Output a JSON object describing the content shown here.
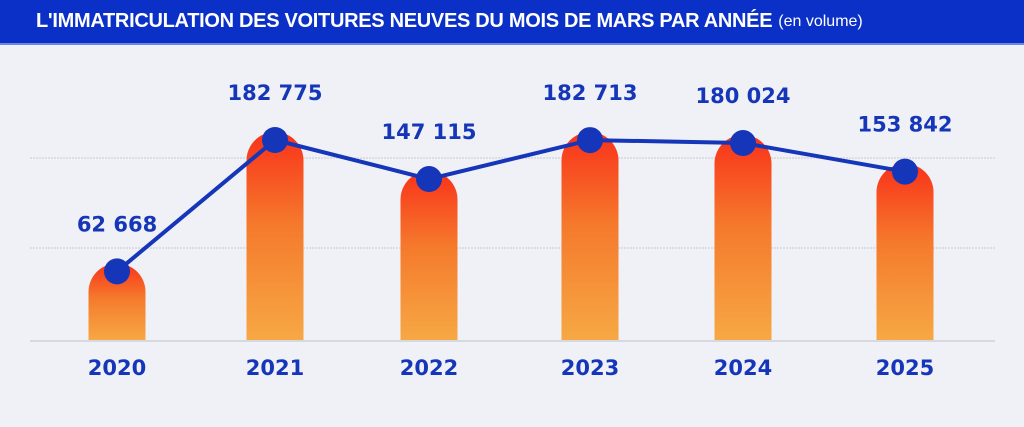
{
  "chart_data": {
    "type": "bar",
    "title": "L'IMMATRICULATION DES VOITURES NEUVES DU MOIS DE MARS PAR ANNÉE",
    "subtitle": "(en volume)",
    "xlabel": "",
    "ylabel": "",
    "categories": [
      "2020",
      "2021",
      "2022",
      "2023",
      "2024",
      "2025"
    ],
    "values": [
      62668,
      182775,
      147115,
      182713,
      180024,
      153842
    ],
    "value_labels": [
      "62 668",
      "182 775",
      "147 115",
      "182 713",
      "180 024",
      "153 842"
    ],
    "overlay": "line with markers on same values",
    "ylim": [
      0,
      280000
    ],
    "grid": true,
    "colors": {
      "header": "#0a30c8",
      "line": "#1536b8",
      "bar_top": "#f9321a",
      "bar_bottom": "#f6a844",
      "background": "#f0f0f7"
    }
  }
}
